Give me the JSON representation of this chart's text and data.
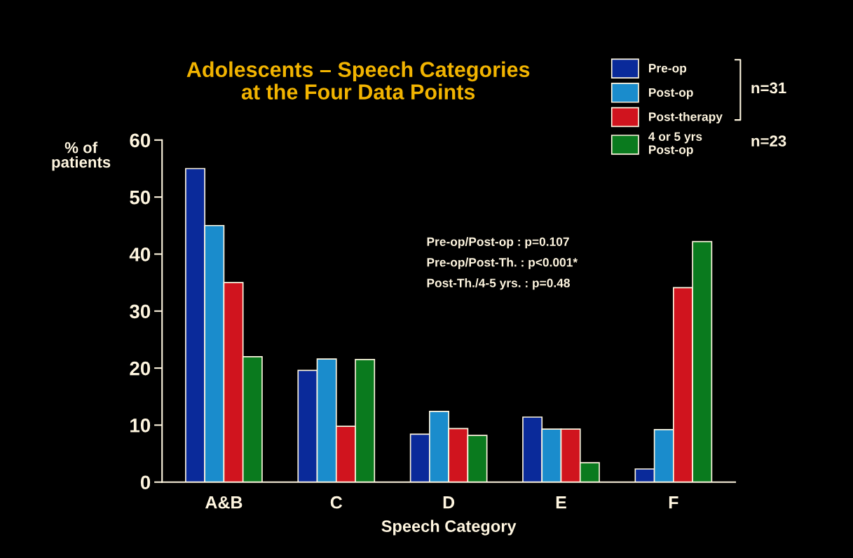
{
  "chart_data": {
    "type": "bar",
    "title": "Adolescents – Speech Categories\nat the Four Data Points",
    "xlabel": "Speech Category",
    "ylabel": "% of\npatients",
    "categories": [
      "A&B",
      "C",
      "D",
      "E",
      "F"
    ],
    "series": [
      {
        "name": "Pre-op",
        "color": "#0a2a9a",
        "values": [
          55,
          19.6,
          8.4,
          11.4,
          2.3
        ]
      },
      {
        "name": "Post-op",
        "color": "#1a8ccc",
        "values": [
          45,
          21.6,
          12.4,
          9.3,
          9.2
        ]
      },
      {
        "name": "Post-therapy",
        "color": "#d0141e",
        "values": [
          35,
          9.8,
          9.4,
          9.3,
          34.1
        ]
      },
      {
        "name": "4 or 5 yrs\nPost-op",
        "color": "#0a7a1e",
        "values": [
          22,
          21.5,
          8.2,
          3.4,
          42.2
        ]
      }
    ],
    "ylim": [
      0,
      60
    ],
    "yticks": [
      0,
      10,
      20,
      30,
      40,
      50,
      60
    ],
    "annotations": [
      "Pre-op/Post-op : p=0.107",
      "Pre-op/Post-Th. : p<0.001*",
      "Post-Th./4-5 yrs. : p=0.48",
      "n=31",
      "n=23"
    ],
    "legend": "top right",
    "grid": false
  }
}
